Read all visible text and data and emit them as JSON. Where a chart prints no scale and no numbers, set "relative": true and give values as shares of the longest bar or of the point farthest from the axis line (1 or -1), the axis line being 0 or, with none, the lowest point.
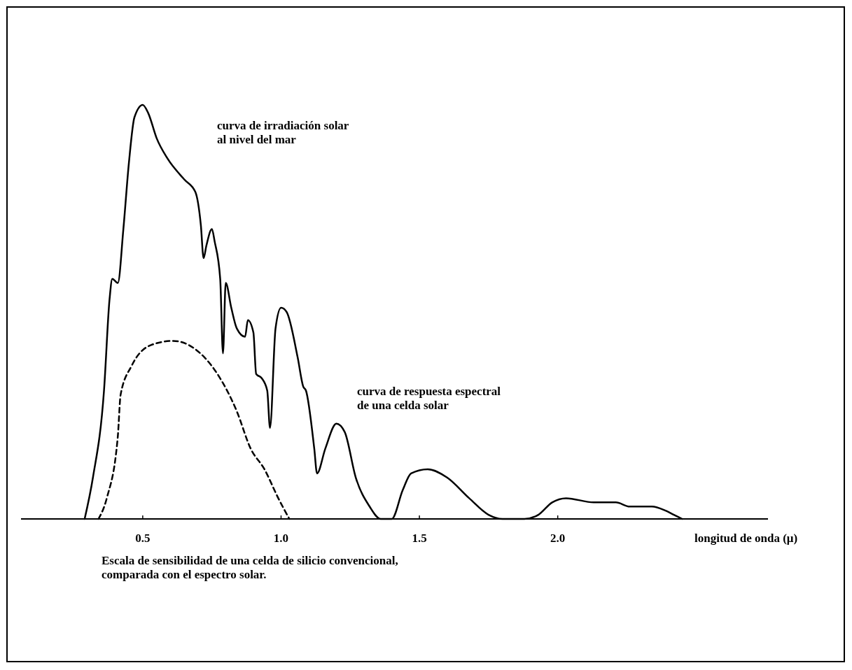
{
  "chart_data": {
    "type": "line",
    "relative": true,
    "xlabel": "longitud de onda (μ)",
    "xlim": [
      0.06,
      2.76
    ],
    "xticks": [
      {
        "value": 0.5,
        "label": "0.5"
      },
      {
        "value": 1,
        "label": "1.0"
      },
      {
        "value": 1.5,
        "label": "1.5"
      },
      {
        "value": 2,
        "label": "2.0"
      }
    ],
    "grid": false,
    "annotations": [
      "curva de irradiación solar al nivel del mar",
      "curva de respuesta espectral de una celda solar",
      "Escala de sensibilidad de una celda de silicio convencional, comparada con el espectro solar."
    ],
    "series": [
      {
        "color": "#000000",
        "line_style": "solid",
        "x": [
          0.29,
          0.32,
          0.36,
          0.38,
          0.39,
          0.41,
          0.43,
          0.45,
          0.47,
          0.5,
          0.52,
          0.55,
          0.59,
          0.65,
          0.69,
          0.71,
          0.72,
          0.73,
          0.75,
          0.76,
          0.78,
          0.79,
          0.8,
          0.82,
          0.84,
          0.87,
          0.88,
          0.9,
          0.91,
          0.93,
          0.95,
          0.96,
          0.98,
          1.0,
          1.02,
          1.06,
          1.08,
          1.09,
          1.12,
          1.13,
          1.16,
          1.2,
          1.23,
          1.27,
          1.32,
          1.36,
          1.4,
          1.44,
          1.47,
          1.53,
          1.6,
          1.68,
          1.75,
          1.8,
          1.88,
          1.93,
          1.98,
          2.03,
          2.13,
          2.21,
          2.26,
          2.34,
          2.39,
          2.42,
          2.45
        ],
        "values": [
          0,
          0.1,
          0.31,
          0.53,
          0.58,
          0.57,
          0.7,
          0.86,
          0.97,
          1,
          0.98,
          0.92,
          0.87,
          0.82,
          0.79,
          0.71,
          0.63,
          0.66,
          0.7,
          0.67,
          0.58,
          0.4,
          0.57,
          0.51,
          0.46,
          0.44,
          0.48,
          0.45,
          0.35,
          0.34,
          0.31,
          0.22,
          0.46,
          0.51,
          0.5,
          0.39,
          0.32,
          0.31,
          0.17,
          0.11,
          0.17,
          0.23,
          0.21,
          0.1,
          0.03,
          0,
          0,
          0.07,
          0.11,
          0.12,
          0.1,
          0.05,
          0.01,
          0,
          0,
          0.01,
          0.04,
          0.05,
          0.04,
          0.04,
          0.03,
          0.03,
          0.02,
          0.01,
          0
        ]
      },
      {
        "color": "#000000",
        "line_style": "dashed",
        "x": [
          0.34,
          0.37,
          0.41,
          0.42,
          0.46,
          0.53,
          0.61,
          0.69,
          0.77,
          0.84,
          0.89,
          0.94,
          0.99,
          1.03
        ],
        "values": [
          0,
          0.05,
          0.2,
          0.3,
          0.37,
          0.42,
          0.43,
          0.41,
          0.35,
          0.26,
          0.17,
          0.12,
          0.05,
          0
        ]
      }
    ]
  }
}
